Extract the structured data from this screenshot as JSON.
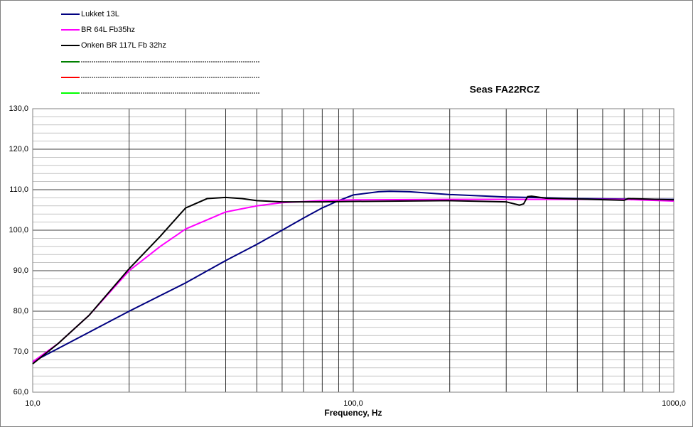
{
  "chart_data": {
    "type": "line",
    "title": "Seas FA22RCZ",
    "x_label": "Frequency, Hz",
    "log_x": true,
    "xlim": [
      10,
      1000
    ],
    "xticks": [
      {
        "value": 10,
        "label": "10,0"
      },
      {
        "value": 100,
        "label": "100,0"
      },
      {
        "value": 1000,
        "label": "1000,0"
      }
    ],
    "xgrid_minor": [
      20,
      30,
      40,
      50,
      60,
      70,
      80,
      90,
      200,
      300,
      400,
      500,
      600,
      700,
      800,
      900
    ],
    "ylim": [
      60,
      130
    ],
    "yticks": [
      {
        "value": 60,
        "label": "60,0"
      },
      {
        "value": 70,
        "label": "70,0"
      },
      {
        "value": 80,
        "label": "80,0"
      },
      {
        "value": 90,
        "label": "90,0"
      },
      {
        "value": 100,
        "label": "100,0"
      },
      {
        "value": 110,
        "label": "110,0"
      },
      {
        "value": 120,
        "label": "120,0"
      },
      {
        "value": 130,
        "label": "130,0"
      }
    ],
    "ygrid_minor": [
      62,
      64,
      66,
      68,
      72,
      74,
      76,
      78,
      82,
      84,
      86,
      88,
      92,
      94,
      96,
      98,
      102,
      104,
      106,
      108,
      112,
      114,
      116,
      118,
      122,
      124,
      126,
      128
    ],
    "grid": true,
    "series": [
      {
        "name": "Lukket 13L",
        "color": "#000080",
        "x": [
          10,
          20,
          30,
          40,
          50,
          60,
          70,
          80,
          90,
          100,
          120,
          130,
          150,
          200,
          300,
          400,
          500,
          700,
          1000
        ],
        "values": [
          67.5,
          80,
          87,
          92.5,
          96.5,
          100,
          103,
          105.5,
          107.3,
          108.7,
          109.5,
          109.6,
          109.5,
          108.8,
          108.2,
          108,
          107.8,
          107.7,
          107.6
        ]
      },
      {
        "name": "BR 64L Fb35hz",
        "color": "#ff00ff",
        "x": [
          10,
          12,
          15,
          20,
          25,
          30,
          40,
          50,
          60,
          80,
          100,
          200,
          400,
          700,
          1000
        ],
        "values": [
          67.5,
          72,
          79,
          90,
          96,
          100.3,
          104.5,
          106,
          106.8,
          107.3,
          107.5,
          107.6,
          107.6,
          107.6,
          107.2
        ]
      },
      {
        "name": "Onken BR 117L Fb 32hz",
        "color": "#000000",
        "x": [
          10,
          12,
          15,
          20,
          25,
          30,
          35,
          40,
          45,
          50,
          60,
          80,
          100,
          200,
          300,
          330,
          340,
          350,
          360,
          400,
          500,
          700,
          720,
          1000
        ],
        "values": [
          67,
          72,
          79,
          90.5,
          98.5,
          105.5,
          107.8,
          108.1,
          107.8,
          107.3,
          107,
          107,
          107.1,
          107.3,
          107,
          106.2,
          106.5,
          108.3,
          108.4,
          107.9,
          107.7,
          107.4,
          107.8,
          107.5
        ]
      }
    ]
  }
}
